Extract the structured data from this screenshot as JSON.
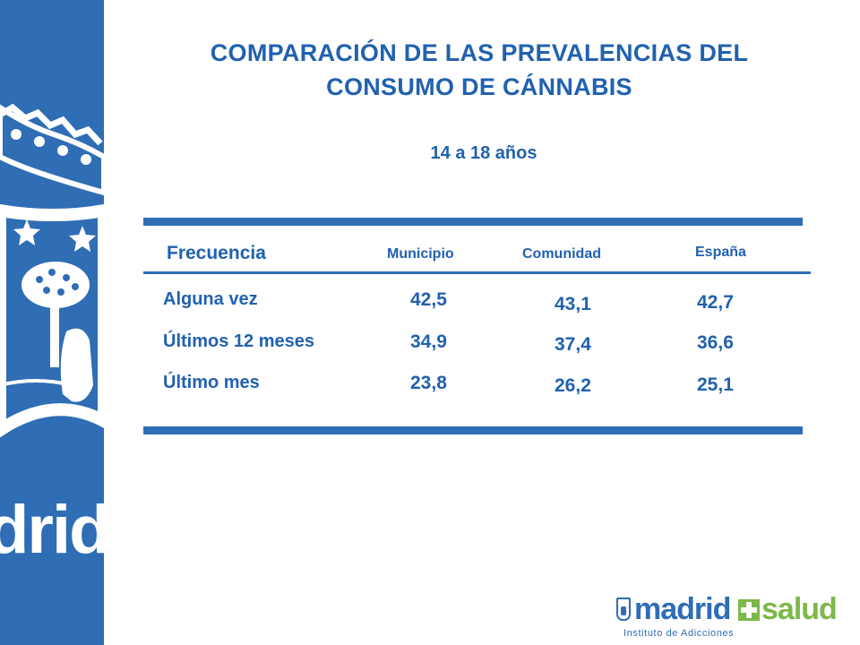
{
  "title_line1": "COMPARACIÓN DE LAS PREVALENCIAS DEL",
  "title_line2": "CONSUMO DE CÁNNABIS",
  "subtitle": "14 a 18 años",
  "table": {
    "header": {
      "frequency": "Frecuencia",
      "municipality": "Municipio",
      "community": "Comunidad",
      "spain": "España"
    },
    "rows": [
      {
        "label": "Alguna vez",
        "municipality": "42,5",
        "community": "43,1",
        "spain": "42,7"
      },
      {
        "label": "Últimos 12 meses",
        "municipality": "34,9",
        "community": "37,4",
        "spain": "36,6"
      },
      {
        "label": "Último mes",
        "municipality": "23,8",
        "community": "26,2",
        "spain": "25,1"
      }
    ]
  },
  "sidebar": {
    "watermark": "drid"
  },
  "logo": {
    "brand_left": "madrid",
    "brand_right": "salud",
    "subtitle": "Instituto de Adicciones"
  },
  "colors": {
    "primary": "#2161b0",
    "sidebar": "#2f6db5",
    "accent_green": "#7db84a"
  }
}
